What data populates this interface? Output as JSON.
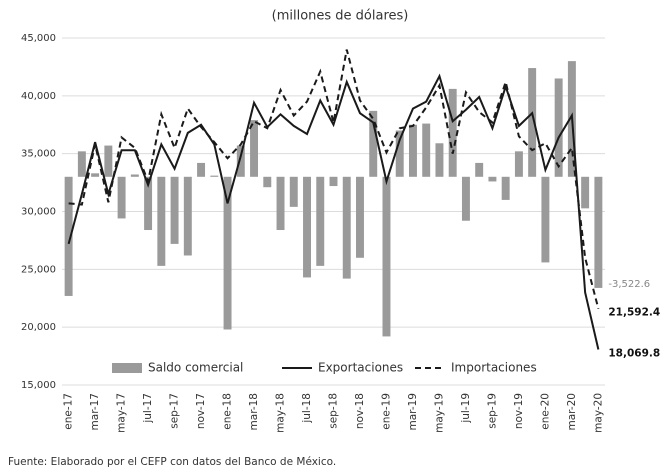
{
  "chart_data": {
    "type": "bar",
    "title": "(millones de dólares)",
    "source": "Fuente: Elaborado por el CEFP con datos del Banco de México.",
    "categories": [
      "ene-17",
      null,
      "mar-17",
      null,
      "may-17",
      null,
      "jul-17",
      null,
      "sep-17",
      null,
      "nov-17",
      null,
      "ene-18",
      null,
      "mar-18",
      null,
      "may-18",
      null,
      "jul-18",
      null,
      "sep-18",
      null,
      "nov-18",
      null,
      "ene-19",
      null,
      "mar-19",
      null,
      "may-19",
      null,
      "jul-19",
      null,
      "sep-19",
      null,
      "nov-19",
      null,
      "ene-20",
      null,
      "mar-20",
      null,
      "may-20"
    ],
    "ylim": [
      15000,
      45000
    ],
    "yticks": [
      {
        "value": 15000,
        "label": "15,000"
      },
      {
        "value": 20000,
        "label": "20,000"
      },
      {
        "value": 25000,
        "label": "25,000"
      },
      {
        "value": 30000,
        "label": "30,000"
      },
      {
        "value": 35000,
        "label": "35,000"
      },
      {
        "value": 40000,
        "label": "40,000"
      },
      {
        "value": 45000,
        "label": "45,000"
      }
    ],
    "y2lim": [
      -6600,
      4400
    ],
    "grid": true,
    "legend": "bottom",
    "series": [
      {
        "name": "Saldo comercial",
        "type": "bar",
        "axis": "y2",
        "color": "#9a9a9a",
        "values": [
          -3777,
          807,
          110,
          990,
          -1320,
          73,
          -1687,
          -2824,
          -2127,
          -2494,
          440,
          37,
          -4840,
          990,
          1797,
          -330,
          -1687,
          -953,
          -3190,
          -2824,
          -293,
          -3227,
          -2567,
          2090,
          -5060,
          1467,
          1650,
          1687,
          1063,
          2787,
          -1393,
          440,
          -147,
          -733,
          807,
          3447,
          -2714,
          3117,
          3667,
          -1000,
          -3522.6
        ],
        "value_labels": [
          null,
          null,
          null,
          null,
          null,
          null,
          null,
          null,
          null,
          null,
          null,
          null,
          null,
          null,
          null,
          null,
          null,
          null,
          null,
          null,
          null,
          null,
          null,
          null,
          null,
          null,
          null,
          null,
          null,
          null,
          null,
          null,
          null,
          null,
          null,
          null,
          null,
          null,
          null,
          null,
          "-3,522.6"
        ]
      },
      {
        "name": "Exportaciones",
        "type": "line",
        "dash": false,
        "color": "#1a1a1a",
        "values": [
          27200,
          31500,
          36000,
          31500,
          35300,
          35300,
          32300,
          35800,
          33700,
          36800,
          37500,
          35800,
          30700,
          34800,
          39400,
          37300,
          38400,
          37400,
          36700,
          39600,
          37500,
          41200,
          38500,
          37700,
          32600,
          36200,
          38900,
          39500,
          41700,
          37800,
          38800,
          39900,
          37200,
          40800,
          37400,
          38500,
          33600,
          36400,
          38300,
          23000,
          18069.8
        ],
        "value_labels": [
          null,
          null,
          null,
          null,
          null,
          null,
          null,
          null,
          null,
          null,
          null,
          null,
          null,
          null,
          null,
          null,
          null,
          null,
          null,
          null,
          null,
          null,
          null,
          null,
          null,
          null,
          null,
          null,
          null,
          null,
          null,
          null,
          null,
          null,
          null,
          null,
          null,
          null,
          null,
          null,
          "18,069.8"
        ]
      },
      {
        "name": "Importaciones",
        "type": "line",
        "dash": true,
        "color": "#1a1a1a",
        "values": [
          30700,
          30600,
          35800,
          30800,
          36400,
          35500,
          32600,
          38400,
          35500,
          38900,
          37300,
          36000,
          34600,
          35800,
          37800,
          37200,
          40500,
          38300,
          39500,
          42100,
          37700,
          44000,
          39600,
          38000,
          35100,
          37200,
          37400,
          39000,
          40900,
          35000,
          40300,
          38600,
          37700,
          41200,
          36500,
          35300,
          35900,
          33900,
          35500,
          26000,
          21592.4
        ],
        "value_labels": [
          null,
          null,
          null,
          null,
          null,
          null,
          null,
          null,
          null,
          null,
          null,
          null,
          null,
          null,
          null,
          null,
          null,
          null,
          null,
          null,
          null,
          null,
          null,
          null,
          null,
          null,
          null,
          null,
          null,
          null,
          null,
          null,
          null,
          null,
          null,
          null,
          null,
          null,
          null,
          null,
          "21,592.4"
        ]
      }
    ]
  }
}
